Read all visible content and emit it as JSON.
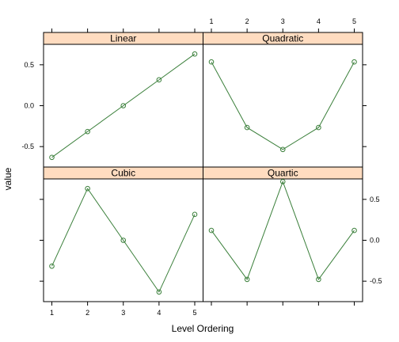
{
  "chart_data": {
    "type": "line",
    "xlabel": "Level Ordering",
    "ylabel": "value",
    "x": [
      1,
      2,
      3,
      4,
      5
    ],
    "x_ticks": [
      "1",
      "2",
      "3",
      "4",
      "5"
    ],
    "y_ticks": [
      -0.5,
      0.0,
      0.5
    ],
    "y_tick_labels": [
      "-0.5",
      "0.0",
      "0.5"
    ],
    "ylim": [
      -0.75,
      0.75
    ],
    "layout": "2x2 trellis",
    "line_color": "#3a7f3a",
    "strip_color": "#ffdcc0",
    "panels": [
      {
        "name": "Linear",
        "values": [
          -0.632,
          -0.316,
          0.0,
          0.316,
          0.632
        ]
      },
      {
        "name": "Quadratic",
        "values": [
          0.535,
          -0.267,
          -0.535,
          -0.267,
          0.535
        ]
      },
      {
        "name": "Cubic",
        "values": [
          -0.316,
          0.632,
          0.0,
          -0.632,
          0.316
        ]
      },
      {
        "name": "Quartic",
        "values": [
          0.12,
          -0.478,
          0.717,
          -0.478,
          0.12
        ]
      }
    ]
  }
}
